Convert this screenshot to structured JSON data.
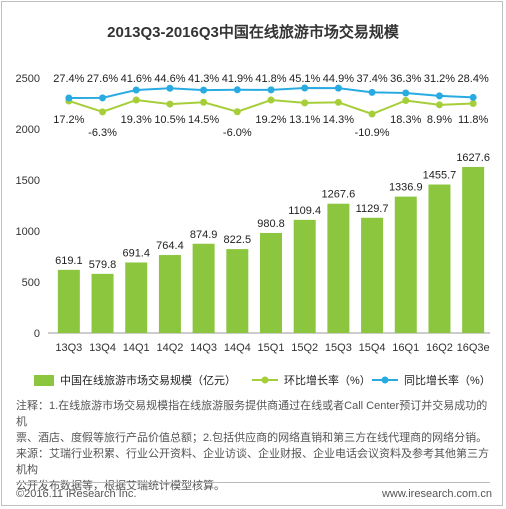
{
  "chart_data": {
    "type": "bar",
    "title": "2013Q3-2016Q3中国在线旅游市场交易规模",
    "categories": [
      "13Q3",
      "13Q4",
      "14Q1",
      "14Q2",
      "14Q3",
      "14Q4",
      "15Q1",
      "15Q2",
      "15Q3",
      "15Q4",
      "16Q1",
      "16Q2",
      "16Q3e"
    ],
    "yticks": [
      0,
      500,
      1000,
      1500,
      2000,
      2500
    ],
    "ylim": [
      0,
      2500
    ],
    "bar_series": {
      "name": "中国在线旅游市场交易规模（亿元）",
      "color": "#8cc63f",
      "values": [
        619.1,
        579.8,
        691.4,
        764.4,
        874.9,
        822.5,
        980.8,
        1109.4,
        1267.6,
        1129.7,
        1336.9,
        1455.7,
        1627.6
      ],
      "labels": [
        "619.1",
        "579.8",
        "691.4",
        "764.4",
        "874.9",
        "822.5",
        "980.8",
        "1109.4",
        "1267.6",
        "1129.7",
        "1336.9",
        "1455.7",
        "1627.6"
      ]
    },
    "line_series": [
      {
        "name": "环比增长率（%）",
        "color": "#a6ce39",
        "values": [
          17.2,
          -6.3,
          19.3,
          10.5,
          14.5,
          -6.0,
          19.2,
          13.1,
          14.3,
          -10.9,
          18.3,
          8.9,
          11.8
        ],
        "labels": [
          "17.2%",
          "-6.3%",
          "19.3%",
          "10.5%",
          "14.5%",
          "-6.0%",
          "19.2%",
          "13.1%",
          "14.3%",
          "-10.9%",
          "18.3%",
          "8.9%",
          "11.8%"
        ]
      },
      {
        "name": "同比增长率（%）",
        "color": "#29abe2",
        "values": [
          27.4,
          27.6,
          41.6,
          44.6,
          41.3,
          41.9,
          41.8,
          45.1,
          44.9,
          37.4,
          36.3,
          31.2,
          28.4
        ],
        "labels": [
          "27.4%",
          "27.6%",
          "41.6%",
          "44.6%",
          "41.3%",
          "41.9%",
          "41.8%",
          "45.1%",
          "44.9%",
          "37.4%",
          "36.3%",
          "31.2%",
          "28.4%"
        ]
      }
    ],
    "legend_placement": "bottom",
    "grid": false
  },
  "notes": {
    "line1": "注释：1.在线旅游市场交易规模指在线旅游服务提供商通过在线或者Call Center预订并交易成功的机",
    "line2": "票、酒店、度假等旅行产品价值总额；2.包括供应商的网络直销和第三方在线代理商的网络分销。",
    "line3": "来源：艾瑞行业积累、行业公开资料、企业访谈、企业财报、企业电话会议资料及参考其他第三方机构",
    "line4": "公开发布数据等，根据艾瑞统计模型核算。"
  },
  "footer": {
    "copyright": "©2016.11 iResearch Inc.",
    "website": "www.iresearch.com.cn"
  }
}
